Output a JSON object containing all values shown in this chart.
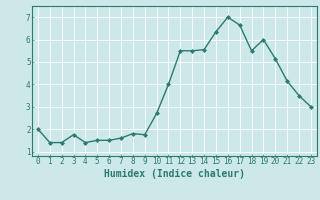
{
  "x": [
    0,
    1,
    2,
    3,
    4,
    5,
    6,
    7,
    8,
    9,
    10,
    11,
    12,
    13,
    14,
    15,
    16,
    17,
    18,
    19,
    20,
    21,
    22,
    23
  ],
  "y": [
    2.0,
    1.4,
    1.4,
    1.75,
    1.4,
    1.5,
    1.5,
    1.6,
    1.8,
    1.75,
    2.7,
    4.0,
    5.5,
    5.5,
    5.55,
    6.35,
    7.0,
    6.65,
    5.5,
    6.0,
    5.15,
    4.15,
    3.5,
    3.0
  ],
  "line_color": "#2d7a6e",
  "marker": "D",
  "marker_size": 2,
  "background_color": "#cce8e8",
  "grid_color": "#ffffff",
  "xlabel": "Humidex (Indice chaleur)",
  "xlabel_fontsize": 7,
  "xlim": [
    -0.5,
    23.5
  ],
  "ylim": [
    0.8,
    7.5
  ],
  "yticks": [
    1,
    2,
    3,
    4,
    5,
    6,
    7
  ],
  "xticks": [
    0,
    1,
    2,
    3,
    4,
    5,
    6,
    7,
    8,
    9,
    10,
    11,
    12,
    13,
    14,
    15,
    16,
    17,
    18,
    19,
    20,
    21,
    22,
    23
  ],
  "tick_color": "#2d7a6e",
  "tick_fontsize": 5.5,
  "line_width": 1.0
}
